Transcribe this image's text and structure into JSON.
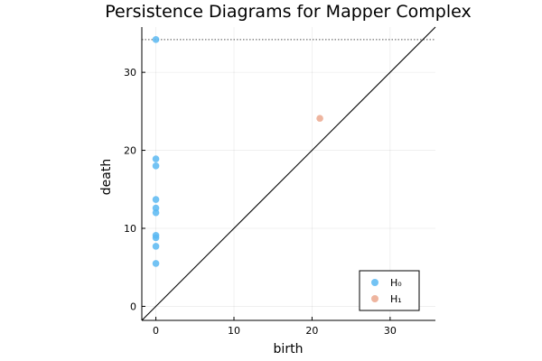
{
  "chart_data": {
    "type": "scatter",
    "title": "Persistence Diagrams for Mapper Complex",
    "xlabel": "birth",
    "ylabel": "death",
    "xlim": [
      -1.8,
      35.8
    ],
    "ylim": [
      -1.8,
      35.8
    ],
    "xticks": [
      0,
      10,
      20,
      30
    ],
    "yticks": [
      0,
      10,
      20,
      30
    ],
    "grid": true,
    "legend_position": "bottom-right",
    "infinity_line": 34.2,
    "diagonal": true,
    "series": [
      {
        "name": "H₀",
        "color": "#5bb8f2",
        "points": [
          {
            "x": 0,
            "y": 34.2
          },
          {
            "x": 0,
            "y": 18.9
          },
          {
            "x": 0,
            "y": 18.0
          },
          {
            "x": 0,
            "y": 13.7
          },
          {
            "x": 0,
            "y": 12.6
          },
          {
            "x": 0,
            "y": 12.0
          },
          {
            "x": 0,
            "y": 9.1
          },
          {
            "x": 0,
            "y": 8.8
          },
          {
            "x": 0,
            "y": 7.7
          },
          {
            "x": 0,
            "y": 5.5
          }
        ]
      },
      {
        "name": "H₁",
        "color": "#eba88e",
        "points": [
          {
            "x": 21.0,
            "y": 24.1
          }
        ]
      }
    ]
  }
}
